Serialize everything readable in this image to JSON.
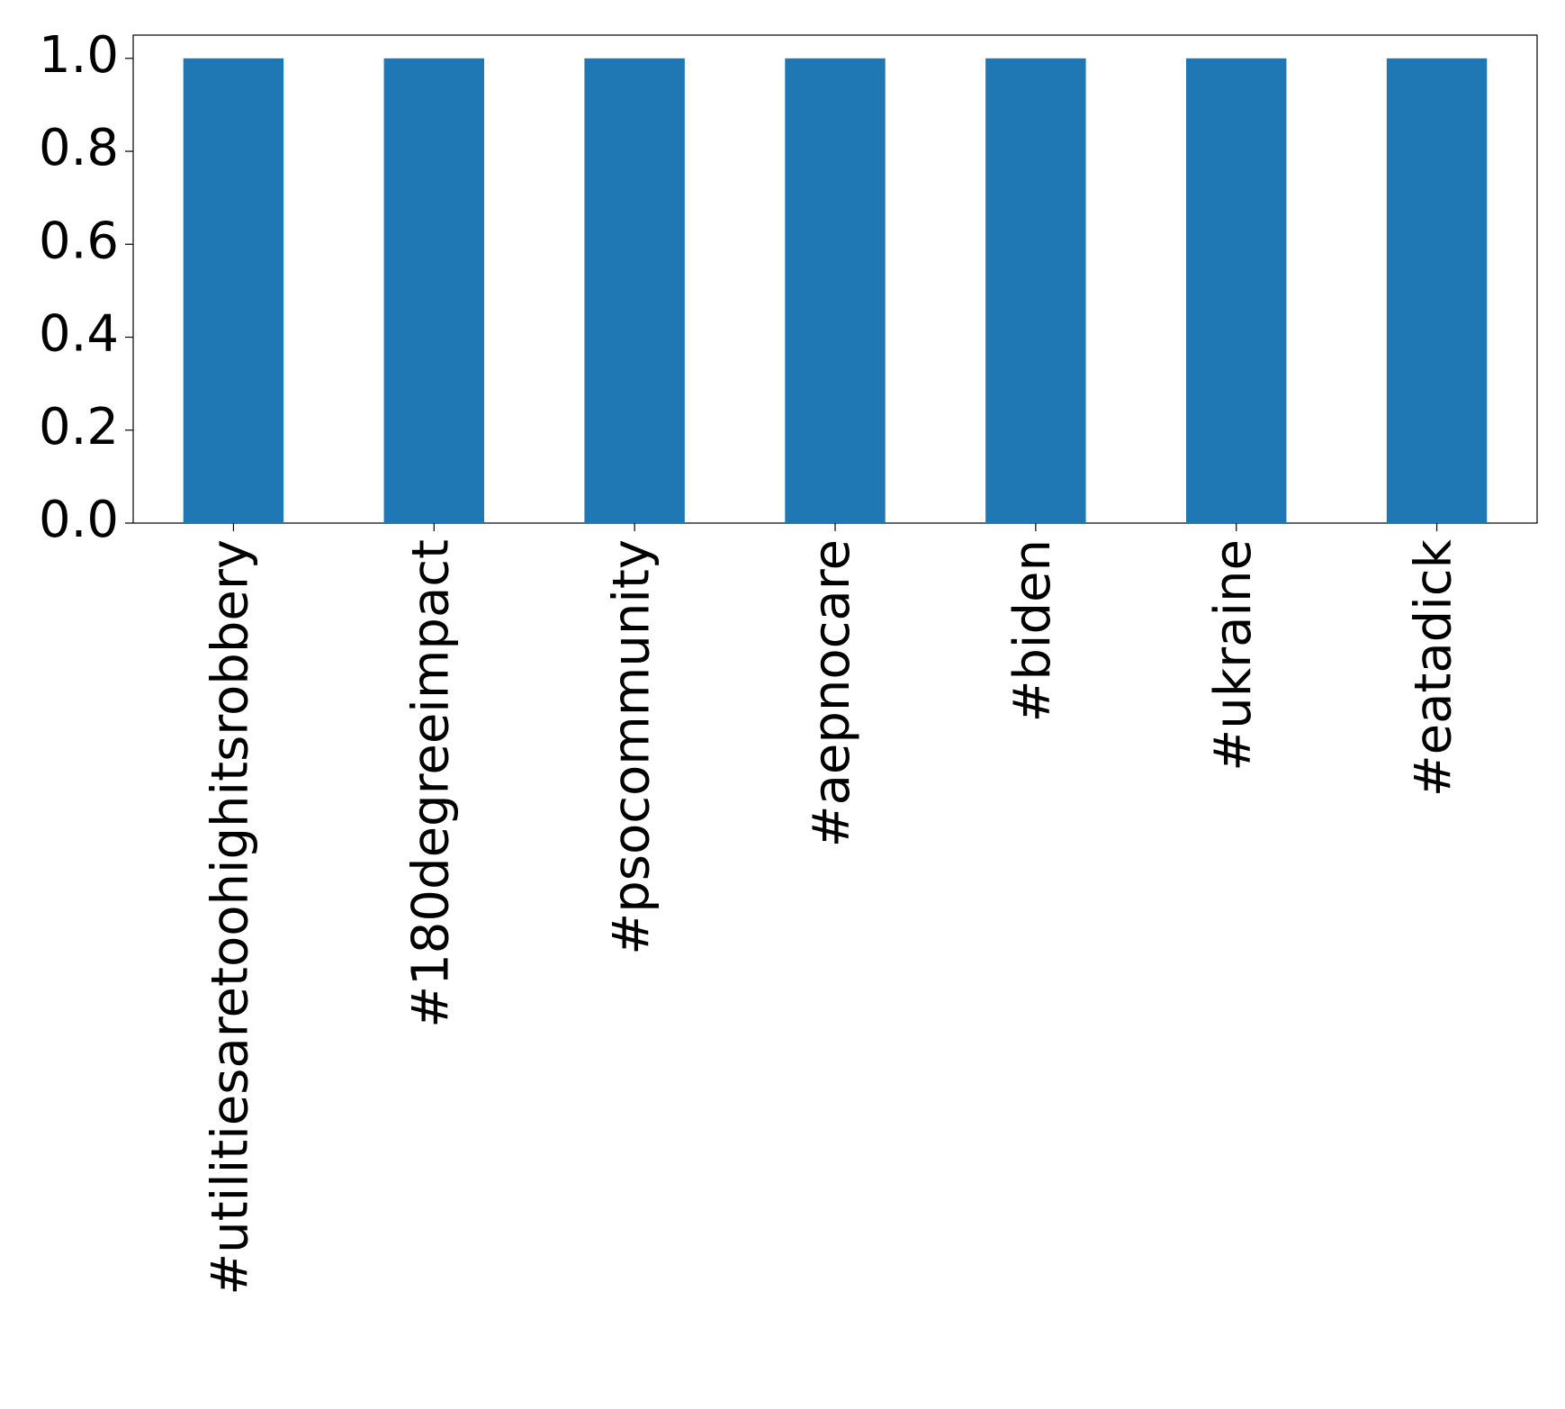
{
  "chart_data": {
    "type": "bar",
    "categories": [
      "#utilitiesaretoohighitsrobbery",
      "#180degreeimpact",
      "#psocommunity",
      "#aepnocare",
      "#biden",
      "#ukraine",
      "#eatadick"
    ],
    "values": [
      1,
      1,
      1,
      1,
      1,
      1,
      1
    ],
    "color": "#1f77b4",
    "ylim": [
      0,
      1.05
    ],
    "yticks": [
      {
        "value": 0,
        "label": "0.0"
      },
      {
        "value": 0.2,
        "label": "0.2"
      },
      {
        "value": 0.4,
        "label": "0.4"
      },
      {
        "value": 0.6,
        "label": "0.6"
      },
      {
        "value": 0.8,
        "label": "0.8"
      },
      {
        "value": 1,
        "label": "1.0"
      }
    ],
    "grid": false
  }
}
